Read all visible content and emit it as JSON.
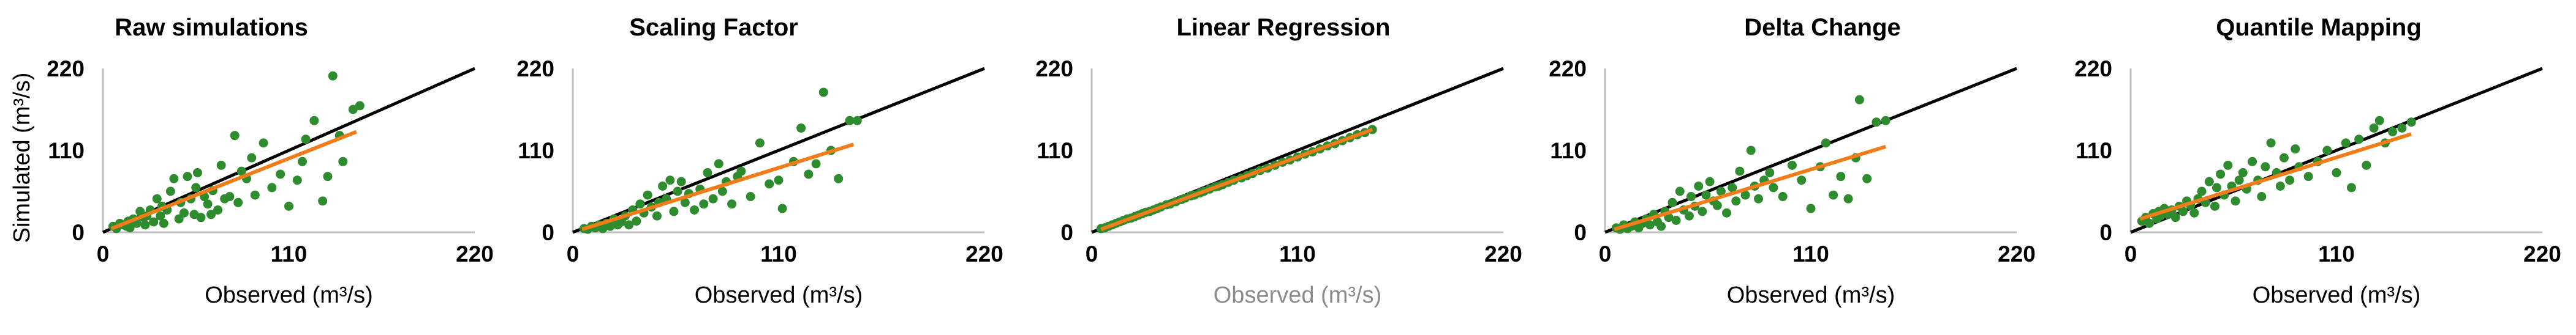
{
  "figure": {
    "ylabel": "Simulated (m³/s)",
    "colors": {
      "points": "#2e8b2e",
      "fit": "#f07d1a",
      "one_to_one": "#000000",
      "axis": "#bfbfbf",
      "label_dim": "#8c8c8c"
    }
  },
  "chart_data": [
    {
      "type": "scatter",
      "title": "Raw simulations",
      "xlabel": "Observed (m³/s)",
      "x_ticks": [
        "0",
        "110",
        "220"
      ],
      "y_ticks": [
        "0",
        "110",
        "220"
      ],
      "xlim": [
        0,
        220
      ],
      "ylim": [
        0,
        220
      ],
      "grid": false,
      "one_to_one": [
        [
          0,
          0
        ],
        [
          220,
          220
        ]
      ],
      "fit": [
        [
          5,
          5
        ],
        [
          150,
          135
        ]
      ],
      "points": [
        [
          6,
          8
        ],
        [
          8,
          5
        ],
        [
          10,
          12
        ],
        [
          12,
          10
        ],
        [
          14,
          8
        ],
        [
          15,
          15
        ],
        [
          16,
          6
        ],
        [
          18,
          18
        ],
        [
          20,
          12
        ],
        [
          22,
          28
        ],
        [
          24,
          20
        ],
        [
          25,
          10
        ],
        [
          26,
          22
        ],
        [
          28,
          30
        ],
        [
          30,
          14
        ],
        [
          32,
          45
        ],
        [
          34,
          22
        ],
        [
          35,
          35
        ],
        [
          36,
          12
        ],
        [
          38,
          30
        ],
        [
          40,
          55
        ],
        [
          42,
          72
        ],
        [
          45,
          18
        ],
        [
          46,
          40
        ],
        [
          48,
          26
        ],
        [
          50,
          75
        ],
        [
          52,
          45
        ],
        [
          54,
          24
        ],
        [
          55,
          60
        ],
        [
          56,
          80
        ],
        [
          58,
          20
        ],
        [
          60,
          48
        ],
        [
          62,
          38
        ],
        [
          64,
          24
        ],
        [
          65,
          56
        ],
        [
          68,
          30
        ],
        [
          70,
          90
        ],
        [
          72,
          45
        ],
        [
          75,
          48
        ],
        [
          78,
          130
        ],
        [
          80,
          40
        ],
        [
          82,
          82
        ],
        [
          85,
          72
        ],
        [
          88,
          100
        ],
        [
          90,
          50
        ],
        [
          95,
          120
        ],
        [
          100,
          60
        ],
        [
          105,
          78
        ],
        [
          110,
          35
        ],
        [
          115,
          70
        ],
        [
          118,
          95
        ],
        [
          120,
          125
        ],
        [
          125,
          150
        ],
        [
          130,
          42
        ],
        [
          133,
          75
        ],
        [
          136,
          210
        ],
        [
          140,
          130
        ],
        [
          142,
          95
        ],
        [
          148,
          165
        ],
        [
          152,
          170
        ]
      ]
    },
    {
      "type": "scatter",
      "title": "Scaling Factor",
      "xlabel": "Observed (m³/s)",
      "x_ticks": [
        "0",
        "110",
        "220"
      ],
      "y_ticks": [
        "0",
        "110",
        "220"
      ],
      "xlim": [
        0,
        220
      ],
      "ylim": [
        0,
        220
      ],
      "grid": false,
      "one_to_one": [
        [
          0,
          0
        ],
        [
          220,
          220
        ]
      ],
      "fit": [
        [
          5,
          4
        ],
        [
          150,
          118
        ]
      ],
      "points": [
        [
          6,
          5
        ],
        [
          8,
          4
        ],
        [
          10,
          8
        ],
        [
          12,
          6
        ],
        [
          14,
          10
        ],
        [
          16,
          5
        ],
        [
          18,
          12
        ],
        [
          20,
          8
        ],
        [
          22,
          18
        ],
        [
          24,
          10
        ],
        [
          26,
          14
        ],
        [
          28,
          22
        ],
        [
          30,
          10
        ],
        [
          32,
          30
        ],
        [
          34,
          15
        ],
        [
          36,
          38
        ],
        [
          38,
          26
        ],
        [
          40,
          50
        ],
        [
          42,
          34
        ],
        [
          45,
          22
        ],
        [
          46,
          40
        ],
        [
          48,
          62
        ],
        [
          50,
          45
        ],
        [
          52,
          70
        ],
        [
          54,
          28
        ],
        [
          56,
          55
        ],
        [
          58,
          68
        ],
        [
          60,
          40
        ],
        [
          62,
          52
        ],
        [
          65,
          30
        ],
        [
          68,
          58
        ],
        [
          70,
          38
        ],
        [
          72,
          80
        ],
        [
          75,
          45
        ],
        [
          78,
          92
        ],
        [
          80,
          55
        ],
        [
          82,
          68
        ],
        [
          85,
          38
        ],
        [
          88,
          75
        ],
        [
          90,
          82
        ],
        [
          95,
          48
        ],
        [
          100,
          120
        ],
        [
          105,
          65
        ],
        [
          110,
          70
        ],
        [
          112,
          32
        ],
        [
          118,
          95
        ],
        [
          122,
          140
        ],
        [
          126,
          78
        ],
        [
          130,
          92
        ],
        [
          134,
          188
        ],
        [
          138,
          110
        ],
        [
          142,
          72
        ],
        [
          148,
          150
        ],
        [
          152,
          150
        ]
      ]
    },
    {
      "type": "scatter",
      "title": "Linear Regression",
      "xlabel": "Observed (m³/s)",
      "xlabel_color": "#8c8c8c",
      "x_ticks": [
        "0",
        "110",
        "220"
      ],
      "y_ticks": [
        "0",
        "110",
        "220"
      ],
      "xlim": [
        0,
        220
      ],
      "ylim": [
        0,
        220
      ],
      "grid": false,
      "one_to_one": [
        [
          0,
          0
        ],
        [
          220,
          220
        ]
      ],
      "fit": [
        [
          5,
          4
        ],
        [
          150,
          138
        ]
      ],
      "points": [
        [
          5,
          5
        ],
        [
          7,
          6
        ],
        [
          9,
          8
        ],
        [
          11,
          10
        ],
        [
          13,
          12
        ],
        [
          15,
          14
        ],
        [
          17,
          16
        ],
        [
          19,
          18
        ],
        [
          21,
          19
        ],
        [
          23,
          21
        ],
        [
          25,
          23
        ],
        [
          27,
          25
        ],
        [
          29,
          27
        ],
        [
          31,
          28
        ],
        [
          33,
          30
        ],
        [
          35,
          32
        ],
        [
          37,
          34
        ],
        [
          40,
          37
        ],
        [
          42,
          38
        ],
        [
          45,
          41
        ],
        [
          48,
          44
        ],
        [
          50,
          46
        ],
        [
          53,
          49
        ],
        [
          55,
          50
        ],
        [
          58,
          53
        ],
        [
          60,
          55
        ],
        [
          63,
          58
        ],
        [
          66,
          61
        ],
        [
          68,
          62
        ],
        [
          70,
          64
        ],
        [
          73,
          67
        ],
        [
          76,
          70
        ],
        [
          80,
          73
        ],
        [
          83,
          76
        ],
        [
          86,
          79
        ],
        [
          90,
          83
        ],
        [
          94,
          86
        ],
        [
          98,
          90
        ],
        [
          102,
          94
        ],
        [
          106,
          97
        ],
        [
          110,
          101
        ],
        [
          114,
          105
        ],
        [
          118,
          108
        ],
        [
          122,
          112
        ],
        [
          126,
          116
        ],
        [
          130,
          119
        ],
        [
          134,
          123
        ],
        [
          138,
          127
        ],
        [
          142,
          131
        ],
        [
          146,
          134
        ],
        [
          150,
          138
        ]
      ]
    },
    {
      "type": "scatter",
      "title": "Delta Change",
      "xlabel": "Observed (m³/s)",
      "x_ticks": [
        "0",
        "110",
        "220"
      ],
      "y_ticks": [
        "0",
        "110",
        "220"
      ],
      "xlim": [
        0,
        220
      ],
      "ylim": [
        0,
        220
      ],
      "grid": false,
      "one_to_one": [
        [
          0,
          0
        ],
        [
          220,
          220
        ]
      ],
      "fit": [
        [
          5,
          4
        ],
        [
          150,
          115
        ]
      ],
      "points": [
        [
          6,
          6
        ],
        [
          8,
          4
        ],
        [
          10,
          10
        ],
        [
          12,
          5
        ],
        [
          14,
          8
        ],
        [
          16,
          14
        ],
        [
          18,
          6
        ],
        [
          20,
          12
        ],
        [
          22,
          18
        ],
        [
          24,
          10
        ],
        [
          26,
          24
        ],
        [
          28,
          14
        ],
        [
          30,
          8
        ],
        [
          32,
          28
        ],
        [
          34,
          20
        ],
        [
          36,
          40
        ],
        [
          38,
          16
        ],
        [
          40,
          55
        ],
        [
          42,
          30
        ],
        [
          45,
          22
        ],
        [
          46,
          48
        ],
        [
          48,
          35
        ],
        [
          50,
          62
        ],
        [
          52,
          28
        ],
        [
          54,
          50
        ],
        [
          56,
          68
        ],
        [
          58,
          42
        ],
        [
          60,
          36
        ],
        [
          62,
          55
        ],
        [
          65,
          26
        ],
        [
          68,
          60
        ],
        [
          70,
          42
        ],
        [
          72,
          82
        ],
        [
          75,
          50
        ],
        [
          78,
          110
        ],
        [
          80,
          62
        ],
        [
          82,
          45
        ],
        [
          85,
          70
        ],
        [
          88,
          80
        ],
        [
          90,
          60
        ],
        [
          95,
          48
        ],
        [
          100,
          90
        ],
        [
          105,
          70
        ],
        [
          110,
          32
        ],
        [
          115,
          88
        ],
        [
          118,
          120
        ],
        [
          122,
          50
        ],
        [
          126,
          75
        ],
        [
          130,
          45
        ],
        [
          134,
          100
        ],
        [
          136,
          178
        ],
        [
          140,
          72
        ],
        [
          145,
          148
        ],
        [
          150,
          150
        ]
      ]
    },
    {
      "type": "scatter",
      "title": "Quantile Mapping",
      "xlabel": "Observed (m³/s)",
      "x_ticks": [
        "0",
        "110",
        "220"
      ],
      "y_ticks": [
        "0",
        "110",
        "220"
      ],
      "xlim": [
        0,
        220
      ],
      "ylim": [
        0,
        220
      ],
      "grid": false,
      "one_to_one": [
        [
          0,
          0
        ],
        [
          220,
          220
        ]
      ],
      "fit": [
        [
          5,
          18
        ],
        [
          150,
          132
        ]
      ],
      "points": [
        [
          6,
          15
        ],
        [
          8,
          20
        ],
        [
          10,
          12
        ],
        [
          12,
          25
        ],
        [
          14,
          18
        ],
        [
          15,
          28
        ],
        [
          16,
          22
        ],
        [
          18,
          32
        ],
        [
          20,
          24
        ],
        [
          22,
          30
        ],
        [
          24,
          20
        ],
        [
          26,
          35
        ],
        [
          28,
          28
        ],
        [
          30,
          42
        ],
        [
          32,
          36
        ],
        [
          34,
          26
        ],
        [
          36,
          45
        ],
        [
          38,
          55
        ],
        [
          40,
          40
        ],
        [
          42,
          68
        ],
        [
          45,
          35
        ],
        [
          46,
          60
        ],
        [
          48,
          78
        ],
        [
          50,
          50
        ],
        [
          52,
          90
        ],
        [
          54,
          62
        ],
        [
          56,
          42
        ],
        [
          58,
          70
        ],
        [
          60,
          80
        ],
        [
          62,
          58
        ],
        [
          65,
          95
        ],
        [
          68,
          70
        ],
        [
          70,
          48
        ],
        [
          72,
          88
        ],
        [
          75,
          120
        ],
        [
          78,
          80
        ],
        [
          80,
          62
        ],
        [
          82,
          100
        ],
        [
          85,
          70
        ],
        [
          88,
          112
        ],
        [
          90,
          88
        ],
        [
          95,
          75
        ],
        [
          100,
          95
        ],
        [
          105,
          110
        ],
        [
          110,
          80
        ],
        [
          115,
          120
        ],
        [
          118,
          60
        ],
        [
          122,
          125
        ],
        [
          126,
          90
        ],
        [
          130,
          140
        ],
        [
          133,
          150
        ],
        [
          136,
          120
        ],
        [
          140,
          135
        ],
        [
          145,
          140
        ],
        [
          150,
          148
        ]
      ]
    }
  ]
}
